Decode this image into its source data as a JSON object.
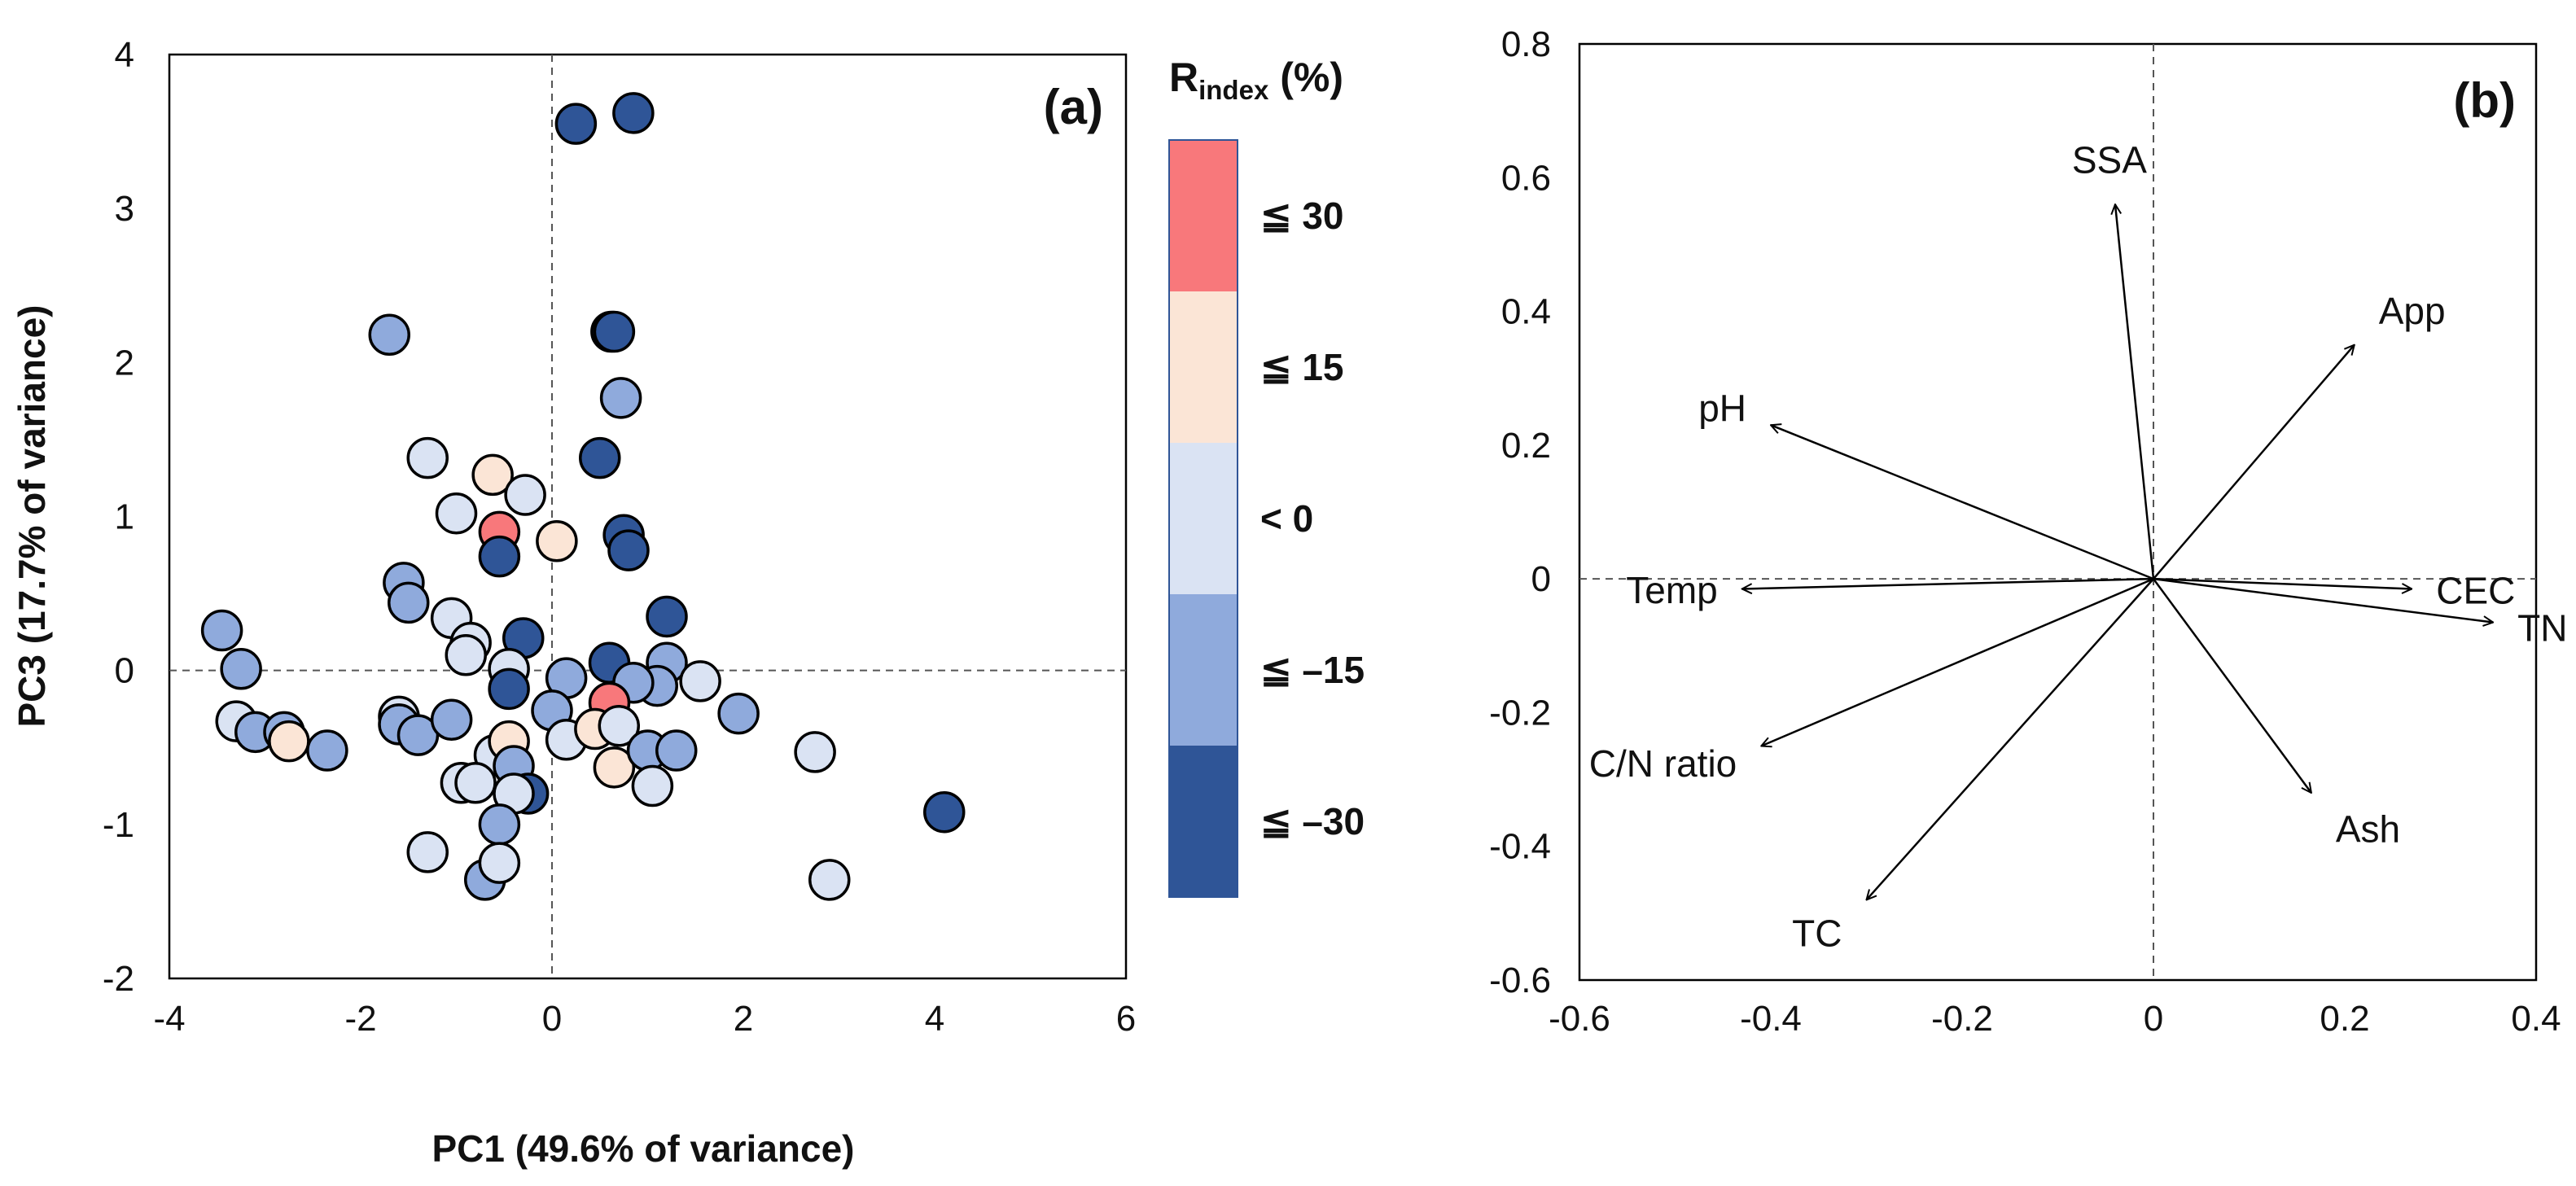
{
  "figure": {
    "shared_xlabel": "PC1 (49.6% of variance)"
  },
  "chart_data": [
    {
      "type": "scatter",
      "panel_label": "(a)",
      "xlabel": "PC1 (49.6% of variance)",
      "ylabel": "PC3 (17.7% of variance)",
      "xlim": [
        -4,
        6
      ],
      "ylim": [
        -2,
        4
      ],
      "x_ticks": [
        -4,
        -2,
        0,
        2,
        4,
        6
      ],
      "y_ticks": [
        -2,
        -1,
        0,
        1,
        2,
        3,
        4
      ],
      "zero_lines": "dashed",
      "legend": {
        "title": "R",
        "title_sub": "index",
        "title_suffix": " (%)",
        "placement": "right",
        "bins": [
          {
            "label": "≦ 30",
            "color": "#F8787B"
          },
          {
            "label": "≦ 15",
            "color": "#FBE5D6"
          },
          {
            "label": "< 0",
            "color": "#DAE3F3"
          },
          {
            "label": "≦ –15",
            "color": "#8FAADC"
          },
          {
            "label": "≦ –30",
            "color": "#2F5597"
          }
        ]
      },
      "category_colors": {
        "r30": "#F8787B",
        "r15": "#FBE5D6",
        "lt0": "#DAE3F3",
        "m15": "#8FAADC",
        "m30": "#2F5597"
      },
      "points": [
        {
          "x": 0.25,
          "y": 3.55,
          "c": "m30"
        },
        {
          "x": 0.85,
          "y": 3.62,
          "c": "m30"
        },
        {
          "x": 0.62,
          "y": 2.2,
          "c": "m30"
        },
        {
          "x": 0.65,
          "y": 2.2,
          "c": "m30"
        },
        {
          "x": -1.7,
          "y": 2.18,
          "c": "m15"
        },
        {
          "x": 0.72,
          "y": 1.77,
          "c": "m15"
        },
        {
          "x": 0.5,
          "y": 1.38,
          "c": "m30"
        },
        {
          "x": -1.3,
          "y": 1.38,
          "c": "lt0"
        },
        {
          "x": -0.62,
          "y": 1.27,
          "c": "r15"
        },
        {
          "x": -0.28,
          "y": 1.14,
          "c": "lt0"
        },
        {
          "x": -1.0,
          "y": 1.02,
          "c": "lt0"
        },
        {
          "x": -0.55,
          "y": 0.9,
          "c": "r30"
        },
        {
          "x": 0.05,
          "y": 0.84,
          "c": "r15"
        },
        {
          "x": 0.75,
          "y": 0.88,
          "c": "m30"
        },
        {
          "x": 0.8,
          "y": 0.78,
          "c": "m30"
        },
        {
          "x": -0.55,
          "y": 0.74,
          "c": "m30"
        },
        {
          "x": -1.55,
          "y": 0.57,
          "c": "m15"
        },
        {
          "x": -1.5,
          "y": 0.44,
          "c": "m15"
        },
        {
          "x": -1.05,
          "y": 0.34,
          "c": "lt0"
        },
        {
          "x": 1.2,
          "y": 0.35,
          "c": "m30"
        },
        {
          "x": -0.3,
          "y": 0.21,
          "c": "m30"
        },
        {
          "x": -0.85,
          "y": 0.18,
          "c": "lt0"
        },
        {
          "x": -0.9,
          "y": 0.1,
          "c": "lt0"
        },
        {
          "x": -3.45,
          "y": 0.26,
          "c": "m15"
        },
        {
          "x": -3.25,
          "y": 0.01,
          "c": "m15"
        },
        {
          "x": -0.45,
          "y": 0.01,
          "c": "lt0"
        },
        {
          "x": 0.15,
          "y": -0.05,
          "c": "m15"
        },
        {
          "x": 0.6,
          "y": 0.05,
          "c": "m30"
        },
        {
          "x": 1.2,
          "y": 0.05,
          "c": "m15"
        },
        {
          "x": 1.55,
          "y": -0.07,
          "c": "lt0"
        },
        {
          "x": 1.1,
          "y": -0.1,
          "c": "m15"
        },
        {
          "x": 0.85,
          "y": -0.08,
          "c": "m15"
        },
        {
          "x": -0.45,
          "y": -0.12,
          "c": "m30"
        },
        {
          "x": 0.6,
          "y": -0.21,
          "c": "r30"
        },
        {
          "x": 0.0,
          "y": -0.26,
          "c": "m15"
        },
        {
          "x": -3.3,
          "y": -0.33,
          "c": "lt0"
        },
        {
          "x": -3.1,
          "y": -0.4,
          "c": "m15"
        },
        {
          "x": -2.8,
          "y": -0.4,
          "c": "m15"
        },
        {
          "x": -2.75,
          "y": -0.46,
          "c": "r15"
        },
        {
          "x": -2.35,
          "y": -0.52,
          "c": "m15"
        },
        {
          "x": -1.6,
          "y": -0.3,
          "c": "lt0"
        },
        {
          "x": -1.6,
          "y": -0.35,
          "c": "m15"
        },
        {
          "x": -1.4,
          "y": -0.42,
          "c": "m15"
        },
        {
          "x": -1.05,
          "y": -0.32,
          "c": "m15"
        },
        {
          "x": -0.6,
          "y": -0.55,
          "c": "lt0"
        },
        {
          "x": -0.45,
          "y": -0.46,
          "c": "r15"
        },
        {
          "x": -0.4,
          "y": -0.62,
          "c": "m15"
        },
        {
          "x": 0.15,
          "y": -0.45,
          "c": "lt0"
        },
        {
          "x": 0.45,
          "y": -0.38,
          "c": "r15"
        },
        {
          "x": 0.7,
          "y": -0.36,
          "c": "lt0"
        },
        {
          "x": 0.65,
          "y": -0.63,
          "c": "r15"
        },
        {
          "x": 1.0,
          "y": -0.52,
          "c": "m15"
        },
        {
          "x": 1.3,
          "y": -0.52,
          "c": "m15"
        },
        {
          "x": 1.95,
          "y": -0.28,
          "c": "m15"
        },
        {
          "x": 2.75,
          "y": -0.53,
          "c": "lt0"
        },
        {
          "x": 1.05,
          "y": -0.75,
          "c": "lt0"
        },
        {
          "x": -0.95,
          "y": -0.73,
          "c": "lt0"
        },
        {
          "x": -0.8,
          "y": -0.73,
          "c": "lt0"
        },
        {
          "x": -0.25,
          "y": -0.8,
          "c": "m30"
        },
        {
          "x": -0.4,
          "y": -0.8,
          "c": "lt0"
        },
        {
          "x": -0.55,
          "y": -1.0,
          "c": "m15"
        },
        {
          "x": -1.3,
          "y": -1.18,
          "c": "lt0"
        },
        {
          "x": -0.7,
          "y": -1.36,
          "c": "m15"
        },
        {
          "x": -0.55,
          "y": -1.25,
          "c": "lt0"
        },
        {
          "x": 2.9,
          "y": -1.36,
          "c": "lt0"
        },
        {
          "x": 4.1,
          "y": -0.92,
          "c": "m30"
        }
      ]
    },
    {
      "type": "biplot-vectors",
      "panel_label": "(b)",
      "xlabel": "PC1 (49.6% of variance)",
      "ylabel": "",
      "xlim": [
        -0.6,
        0.4
      ],
      "ylim": [
        -0.6,
        0.8
      ],
      "x_ticks": [
        "-0.6",
        "-0.4",
        "-0.2",
        "0",
        "0.2",
        "0.4"
      ],
      "y_ticks": [
        "-0.6",
        "-0.4",
        "-0.2",
        "0",
        "0.2",
        "0.4",
        "0.6",
        "0.8"
      ],
      "zero_lines": "dashed",
      "vectors": [
        {
          "name": "SSA",
          "x": -0.04,
          "y": 0.56
        },
        {
          "name": "App",
          "x": 0.21,
          "y": 0.35
        },
        {
          "name": "pH",
          "x": -0.4,
          "y": 0.23
        },
        {
          "name": "Temp",
          "x": -0.43,
          "y": -0.015
        },
        {
          "name": "CEC",
          "x": 0.27,
          "y": -0.015
        },
        {
          "name": "TN",
          "x": 0.355,
          "y": -0.065
        },
        {
          "name": "C/N ratio",
          "x": -0.41,
          "y": -0.25
        },
        {
          "name": "Ash",
          "x": 0.165,
          "y": -0.32
        },
        {
          "name": "TC",
          "x": -0.3,
          "y": -0.48
        }
      ]
    }
  ]
}
